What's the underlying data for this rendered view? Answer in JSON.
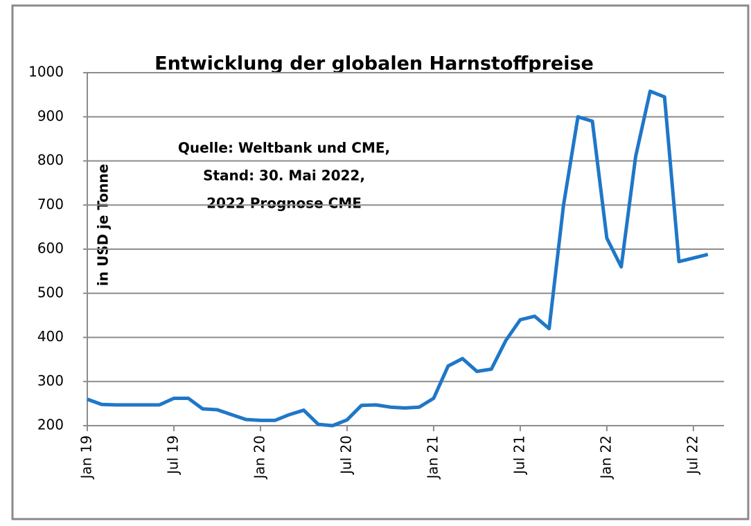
{
  "chart_data": {
    "type": "line",
    "title": "Entwicklung der globalen Harnstoffpreise",
    "y_label": "in USD je Tonne",
    "annotation": [
      "Quelle: Weltbank und CME,",
      "Stand: 30. Mai 2022,",
      "2022 Prognose CME"
    ],
    "categories": [
      "Jan 19",
      null,
      null,
      null,
      null,
      null,
      "Jul 19",
      null,
      null,
      null,
      null,
      null,
      "Jan 20",
      null,
      null,
      null,
      null,
      null,
      "Jul 20",
      null,
      null,
      null,
      null,
      null,
      "Jan 21",
      null,
      null,
      null,
      null,
      null,
      "Jul 21",
      null,
      null,
      null,
      null,
      null,
      "Jan 22",
      null,
      null,
      null,
      null,
      null,
      "Jul 22",
      null
    ],
    "series": [
      {
        "name": "Harnstoffpreis",
        "color": "#1f77c8",
        "values": [
          260,
          248,
          247,
          247,
          247,
          247,
          262,
          262,
          238,
          236,
          225,
          214,
          212,
          212,
          225,
          235,
          203,
          200,
          213,
          246,
          247,
          242,
          240,
          242,
          262,
          335,
          352,
          323,
          328,
          393,
          440,
          448,
          420,
          700,
          900,
          890,
          625,
          560,
          810,
          958,
          945,
          572,
          580,
          588
        ]
      }
    ],
    "ylim": [
      200,
      1000
    ],
    "yticks": [
      200,
      300,
      400,
      500,
      600,
      700,
      800,
      900,
      1000
    ],
    "grid": true
  }
}
